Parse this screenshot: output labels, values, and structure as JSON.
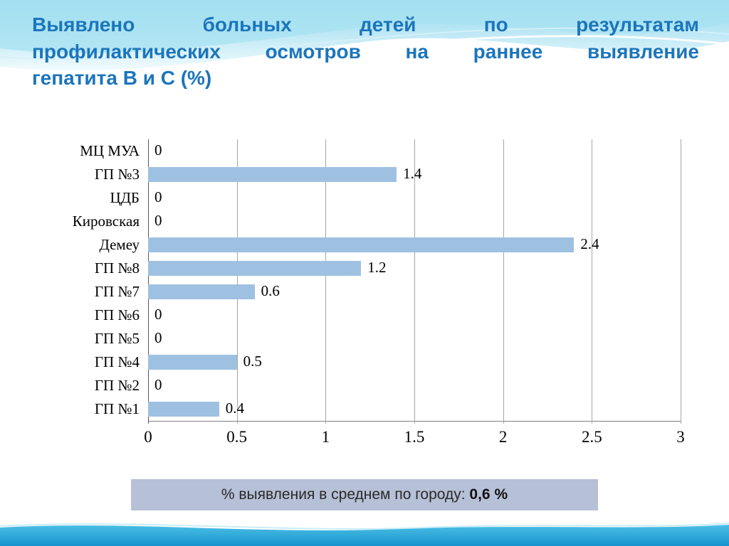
{
  "slide": {
    "title_lines": [
      "Выявлено больных детей по результатам",
      "профилактических осмотров на раннее выявление",
      "гепатита В и С (%)"
    ],
    "caption_prefix": "% выявления в среднем по городу: ",
    "caption_value": "0,6 %"
  },
  "chart_data": {
    "type": "bar",
    "orientation": "horizontal",
    "title": "",
    "xlabel": "",
    "ylabel": "",
    "categories": [
      "МЦ МУА",
      "ГП №3",
      "ЦДБ",
      "Кировская",
      "Демеу",
      "ГП №8",
      "ГП №7",
      "ГП №6",
      "ГП №5",
      "ГП №4",
      "ГП №2",
      "ГП №1"
    ],
    "values": [
      0,
      1.4,
      0,
      0,
      2.4,
      1.2,
      0.6,
      0,
      0,
      0.5,
      0,
      0.4
    ],
    "value_labels": [
      "0",
      "1.4",
      "0",
      "0",
      "2.4",
      "1.2",
      "0.6",
      "0",
      "0",
      "0.5",
      "0",
      "0.4"
    ],
    "x_ticks": [
      "0",
      "0.5",
      "1",
      "1.5",
      "2",
      "2.5",
      "3"
    ],
    "xlim": [
      0,
      3
    ],
    "grid": true,
    "legend": false,
    "bar_color": "#9fc1e1"
  },
  "colors": {
    "title_text": "#1c75bc",
    "bar": "#9fc1e1",
    "caption_bg": "#b6c0d6",
    "gridline": "#a6a6a6",
    "wave_top": "#8ed7ec",
    "wave_bottom": "#1792cd"
  }
}
